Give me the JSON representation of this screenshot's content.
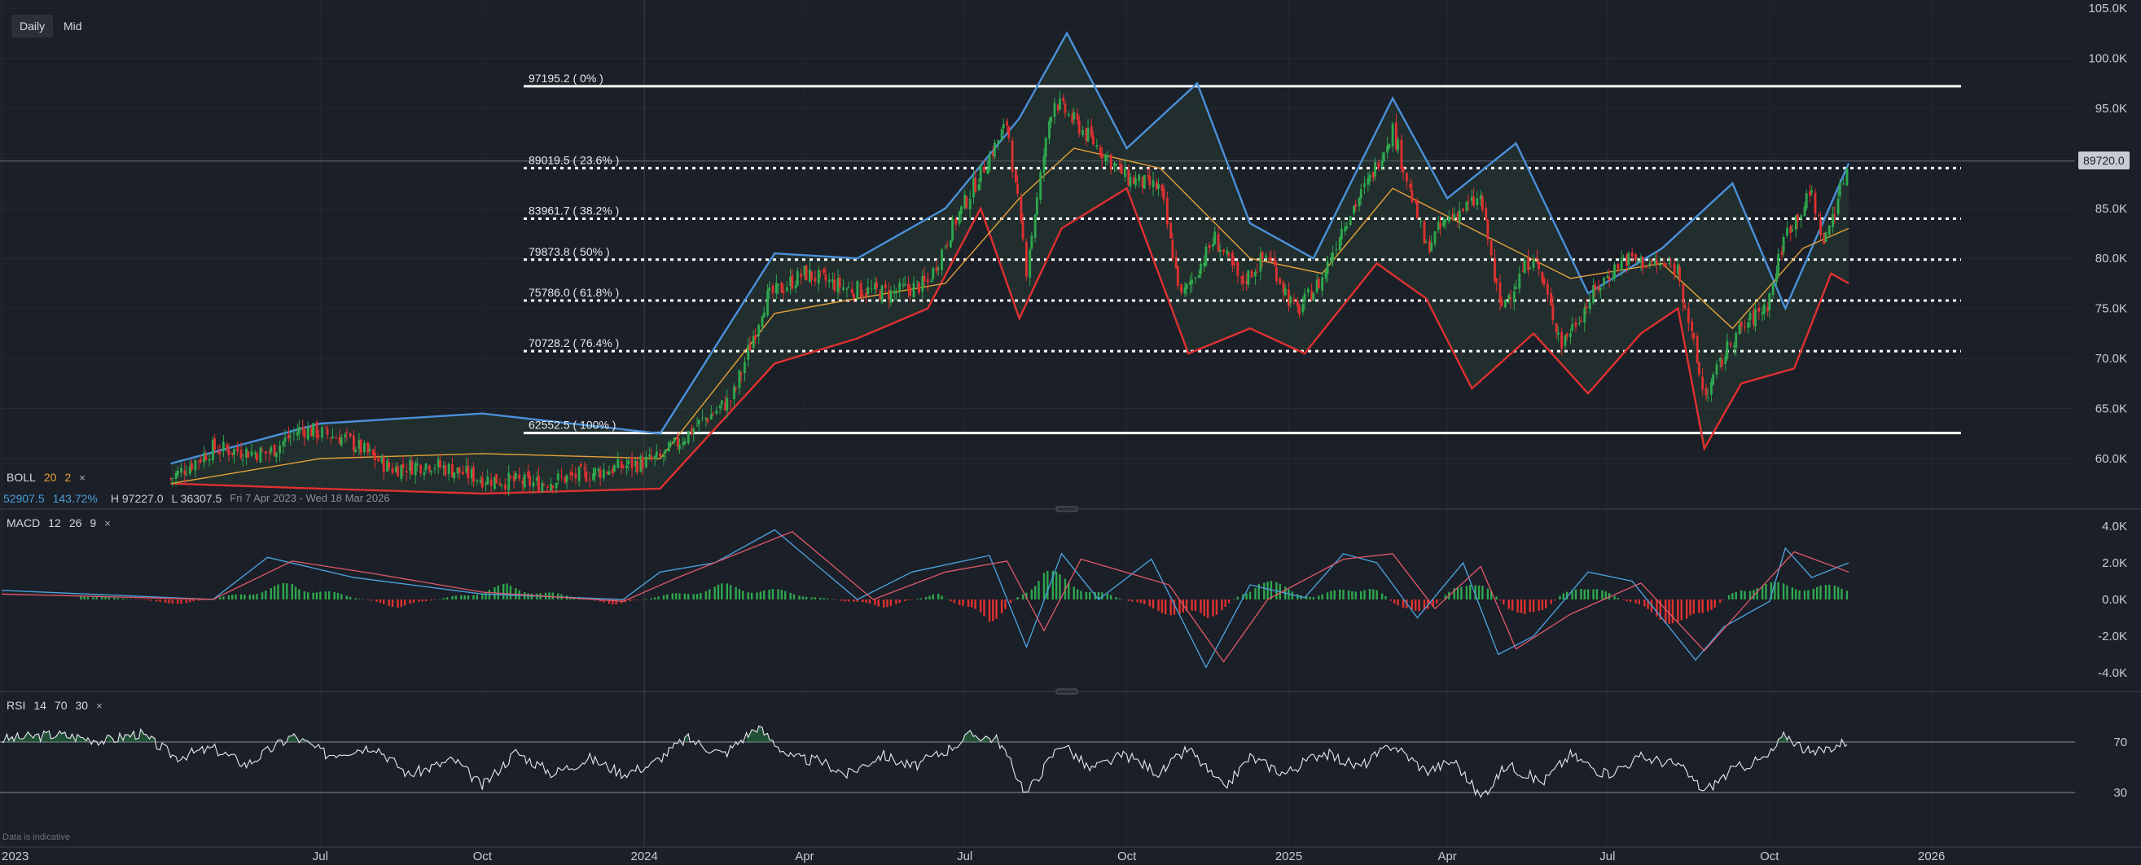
{
  "toolbar": {
    "timeframes": [
      "Daily",
      "Mid"
    ]
  },
  "price_tag": "89720.0",
  "indicators": {
    "boll": {
      "name": "BOLL",
      "period": "20",
      "mult": "2",
      "value1": "52907.5",
      "value2": "143.72%",
      "high": "H 97227.0",
      "low": "L 36307.5",
      "range": "Fri 7 Apr 2023 - Wed 18 Mar 2026"
    },
    "macd": {
      "name": "MACD",
      "fast": "12",
      "slow": "26",
      "signal": "9"
    },
    "rsi": {
      "name": "RSI",
      "period": "14",
      "upper": "70",
      "lower": "30"
    }
  },
  "close_glyph": "×",
  "footer_note": "Data is indicative",
  "colors": {
    "background": "#1b1f27",
    "upper_band": "#4a90d9",
    "lower_band": "#e03131",
    "middle_band": "#e8a13a",
    "up_candle": "#2fa84f",
    "down_candle": "#e03131",
    "fib": "#ffffff"
  },
  "chart_data": [
    {
      "type": "candlestick",
      "title": "",
      "x_ticks": [
        "2023",
        "Jul",
        "Oct",
        "2024",
        "Apr",
        "Jul",
        "Oct",
        "2025",
        "Apr",
        "Jul",
        "Oct",
        "2026"
      ],
      "y_ticks": [
        "105.0K",
        "100.0K",
        "95.0K",
        "90.0K",
        "85.0K",
        "80.0K",
        "75.0K",
        "70.0K",
        "65.0K",
        "60.0K"
      ],
      "ylim": [
        57000,
        105000
      ],
      "x_range": [
        "2023-01-01",
        "2026-01-15"
      ],
      "close_series": {
        "x": [
          "2023-04-07",
          "2023-05-01",
          "2023-06-01",
          "2023-06-20",
          "2023-07-15",
          "2023-08-10",
          "2023-09-01",
          "2023-10-01",
          "2023-11-01",
          "2023-12-01",
          "2024-01-10",
          "2024-02-01",
          "2024-02-20",
          "2024-03-10",
          "2024-04-01",
          "2024-04-25",
          "2024-05-20",
          "2024-06-10",
          "2024-06-25",
          "2024-07-10",
          "2024-07-25",
          "2024-08-05",
          "2024-08-20",
          "2024-09-10",
          "2024-10-01",
          "2024-10-20",
          "2024-11-01",
          "2024-11-20",
          "2024-12-05",
          "2024-12-20",
          "2025-01-05",
          "2025-01-20",
          "2025-02-01",
          "2025-02-15",
          "2025-03-01",
          "2025-03-20",
          "2025-04-01",
          "2025-04-20",
          "2025-05-01",
          "2025-05-20",
          "2025-06-05",
          "2025-06-25",
          "2025-07-10",
          "2025-07-25",
          "2025-08-10",
          "2025-08-25",
          "2025-09-10",
          "2025-09-30",
          "2025-10-10",
          "2025-10-25",
          "2025-11-01",
          "2025-11-15"
        ],
        "y": [
          58000,
          61000,
          60500,
          63000,
          62000,
          59000,
          59500,
          58000,
          57500,
          58500,
          60000,
          63500,
          66000,
          76000,
          78500,
          77000,
          76500,
          77500,
          83500,
          88500,
          93500,
          79000,
          96000,
          92000,
          88000,
          87000,
          76000,
          82000,
          77500,
          80500,
          74500,
          78000,
          83500,
          87500,
          93000,
          81000,
          84000,
          86000,
          75000,
          80500,
          71500,
          77000,
          80000,
          79500,
          79000,
          66000,
          72000,
          75500,
          82500,
          86500,
          81500,
          89720
        ]
      },
      "bollinger": {
        "upper": {
          "x": [
            "2023-04-07",
            "2023-07-01",
            "2023-10-01",
            "2024-01-10",
            "2024-03-15",
            "2024-05-01",
            "2024-06-20",
            "2024-08-01",
            "2024-08-28",
            "2024-10-01",
            "2024-11-10",
            "2024-12-10",
            "2025-01-15",
            "2025-03-01",
            "2025-04-01",
            "2025-05-10",
            "2025-06-20",
            "2025-08-01",
            "2025-09-10",
            "2025-10-10",
            "2025-11-15"
          ],
          "y": [
            59500,
            63500,
            64500,
            62500,
            80500,
            80000,
            85000,
            94000,
            102500,
            91000,
            97500,
            83500,
            80000,
            96000,
            86000,
            91500,
            76500,
            81000,
            87500,
            75000,
            89500
          ]
        },
        "middle": {
          "x": [
            "2023-04-07",
            "2023-07-01",
            "2023-10-01",
            "2024-01-10",
            "2024-03-15",
            "2024-05-01",
            "2024-06-20",
            "2024-08-01",
            "2024-09-01",
            "2024-10-20",
            "2024-12-10",
            "2025-01-20",
            "2025-03-01",
            "2025-04-20",
            "2025-06-10",
            "2025-08-01",
            "2025-09-10",
            "2025-10-20",
            "2025-11-15"
          ],
          "y": [
            57500,
            60000,
            60500,
            60000,
            74500,
            76000,
            77500,
            86000,
            91000,
            89000,
            80000,
            78500,
            87000,
            82500,
            78000,
            79500,
            73000,
            81000,
            83000
          ]
        },
        "lower": {
          "x": [
            "2023-04-07",
            "2023-07-01",
            "2023-10-01",
            "2024-01-10",
            "2024-03-15",
            "2024-05-01",
            "2024-06-10",
            "2024-07-10",
            "2024-08-01",
            "2024-08-25",
            "2024-10-01",
            "2024-11-05",
            "2024-12-10",
            "2025-01-10",
            "2025-02-20",
            "2025-03-20",
            "2025-04-15",
            "2025-05-20",
            "2025-06-20",
            "2025-07-20",
            "2025-08-10",
            "2025-08-25",
            "2025-09-15",
            "2025-10-15",
            "2025-11-05",
            "2025-11-15"
          ],
          "y": [
            57500,
            57000,
            56500,
            57000,
            69500,
            72000,
            75000,
            85000,
            74000,
            83000,
            87000,
            70500,
            73000,
            70500,
            79500,
            76000,
            67000,
            72500,
            66500,
            72500,
            75000,
            61000,
            67500,
            69000,
            78500,
            77500
          ]
        }
      },
      "fibonacci": [
        {
          "label": "97195.2 ( 0% )",
          "value": 97195.2,
          "style": "solid"
        },
        {
          "label": "89019.5 ( 23.6% )",
          "value": 89019.5,
          "style": "dotted"
        },
        {
          "label": "83961.7 ( 38.2% )",
          "value": 83961.7,
          "style": "dotted"
        },
        {
          "label": "79873.8 ( 50% )",
          "value": 79873.8,
          "style": "dotted"
        },
        {
          "label": "75786.0 ( 61.8% )",
          "value": 75786.0,
          "style": "dotted"
        },
        {
          "label": "70728.2 ( 76.4% )",
          "value": 70728.2,
          "style": "dotted"
        },
        {
          "label": "62552.5 ( 100% )",
          "value": 62552.5,
          "style": "solid"
        }
      ],
      "crosshair_value": 89720,
      "fib_start": "2024-01-10",
      "fib_end": "2026-01-15"
    },
    {
      "type": "macd",
      "y_ticks": [
        "4.0K",
        "2.0K",
        "0.0K",
        "-2.0K",
        "-4.0K"
      ],
      "ylim": [
        -4500,
        4500
      ],
      "macd_line": {
        "x": [
          "2023-01-01",
          "2023-05-01",
          "2023-06-01",
          "2023-07-20",
          "2023-10-01",
          "2023-12-20",
          "2024-01-10",
          "2024-02-10",
          "2024-03-15",
          "2024-05-01",
          "2024-06-01",
          "2024-07-15",
          "2024-08-05",
          "2024-08-25",
          "2024-09-15",
          "2024-10-15",
          "2024-11-15",
          "2024-12-10",
          "2025-01-10",
          "2025-02-01",
          "2025-02-20",
          "2025-03-15",
          "2025-04-10",
          "2025-04-30",
          "2025-05-20",
          "2025-06-20",
          "2025-07-15",
          "2025-08-20",
          "2025-09-05",
          "2025-10-01",
          "2025-10-10",
          "2025-10-25",
          "2025-11-15"
        ],
        "y": [
          500,
          0,
          2300,
          1200,
          300,
          0,
          1500,
          2000,
          3800,
          0,
          1500,
          2400,
          -2600,
          2500,
          0,
          2200,
          -3700,
          800,
          100,
          2500,
          2000,
          -1000,
          2000,
          -3000,
          -2000,
          1500,
          1000,
          -3300,
          -1500,
          -100,
          2800,
          1200,
          2000
        ]
      },
      "signal_line": {
        "x": [
          "2023-01-01",
          "2023-05-01",
          "2023-06-15",
          "2023-08-01",
          "2023-10-01",
          "2023-12-20",
          "2024-01-20",
          "2024-03-25",
          "2024-05-10",
          "2024-06-20",
          "2024-07-25",
          "2024-08-15",
          "2024-09-05",
          "2024-10-25",
          "2024-11-25",
          "2024-12-20",
          "2025-02-01",
          "2025-03-01",
          "2025-03-25",
          "2025-04-20",
          "2025-05-10",
          "2025-06-10",
          "2025-07-20",
          "2025-08-25",
          "2025-09-20",
          "2025-10-15",
          "2025-11-15"
        ],
        "y": [
          300,
          0,
          2100,
          1400,
          400,
          -100,
          1200,
          3700,
          0,
          1500,
          2100,
          -1700,
          2200,
          800,
          -3400,
          0,
          2200,
          2500,
          -500,
          1800,
          -2700,
          -800,
          900,
          -2800,
          0,
          2600,
          1500
        ]
      },
      "histogram": {
        "x": [
          "2023-02",
          "2023-04",
          "2023-06",
          "2023-08",
          "2023-10",
          "2023-12",
          "2024-02",
          "2024-03",
          "2024-05",
          "2024-06",
          "2024-07",
          "2024-08",
          "2024-09",
          "2024-10",
          "2024-11",
          "2024-12",
          "2025-01",
          "2025-02",
          "2025-03",
          "2025-04",
          "2025-05",
          "2025-06",
          "2025-07",
          "2025-08",
          "2025-09",
          "2025-10",
          "2025-11"
        ],
        "y": [
          300,
          -300,
          1000,
          -500,
          900,
          -300,
          900,
          600,
          -500,
          400,
          -1500,
          1800,
          500,
          -600,
          -1400,
          1300,
          200,
          1000,
          -1300,
          1700,
          -1600,
          1200,
          -300,
          -1900,
          900,
          1000,
          700
        ]
      }
    },
    {
      "type": "rsi",
      "y_ticks": [
        "70",
        "30"
      ],
      "ylim": [
        0,
        100
      ],
      "rsi": {
        "x": [
          "2023-01-01",
          "2023-02-01",
          "2023-03-01",
          "2023-03-20",
          "2023-04-10",
          "2023-05-01",
          "2023-05-20",
          "2023-06-15",
          "2023-07-05",
          "2023-08-01",
          "2023-08-20",
          "2023-09-15",
          "2023-10-01",
          "2023-10-20",
          "2023-11-10",
          "2023-12-01",
          "2023-12-20",
          "2024-01-05",
          "2024-01-25",
          "2024-02-15",
          "2024-03-05",
          "2024-03-25",
          "2024-04-10",
          "2024-04-25",
          "2024-05-15",
          "2024-06-01",
          "2024-06-20",
          "2024-07-05",
          "2024-07-20",
          "2024-08-05",
          "2024-08-25",
          "2024-09-10",
          "2024-09-30",
          "2024-10-20",
          "2024-11-05",
          "2024-11-25",
          "2024-12-10",
          "2024-12-30",
          "2025-01-20",
          "2025-02-10",
          "2025-03-01",
          "2025-03-20",
          "2025-04-05",
          "2025-04-20",
          "2025-05-05",
          "2025-05-25",
          "2025-06-10",
          "2025-06-30",
          "2025-07-20",
          "2025-08-10",
          "2025-08-25",
          "2025-09-10",
          "2025-09-30",
          "2025-10-10",
          "2025-10-25",
          "2025-11-05",
          "2025-11-15"
        ],
        "y": [
          72,
          76,
          71,
          77,
          58,
          65,
          52,
          75,
          60,
          67,
          44,
          56,
          35,
          62,
          45,
          57,
          45,
          52,
          73,
          60,
          82,
          57,
          55,
          44,
          60,
          50,
          63,
          76,
          72,
          29,
          70,
          48,
          60,
          45,
          65,
          33,
          58,
          45,
          62,
          50,
          68,
          47,
          55,
          26,
          52,
          38,
          60,
          44,
          58,
          52,
          31,
          48,
          58,
          76,
          60,
          66,
          71
        ]
      }
    }
  ]
}
